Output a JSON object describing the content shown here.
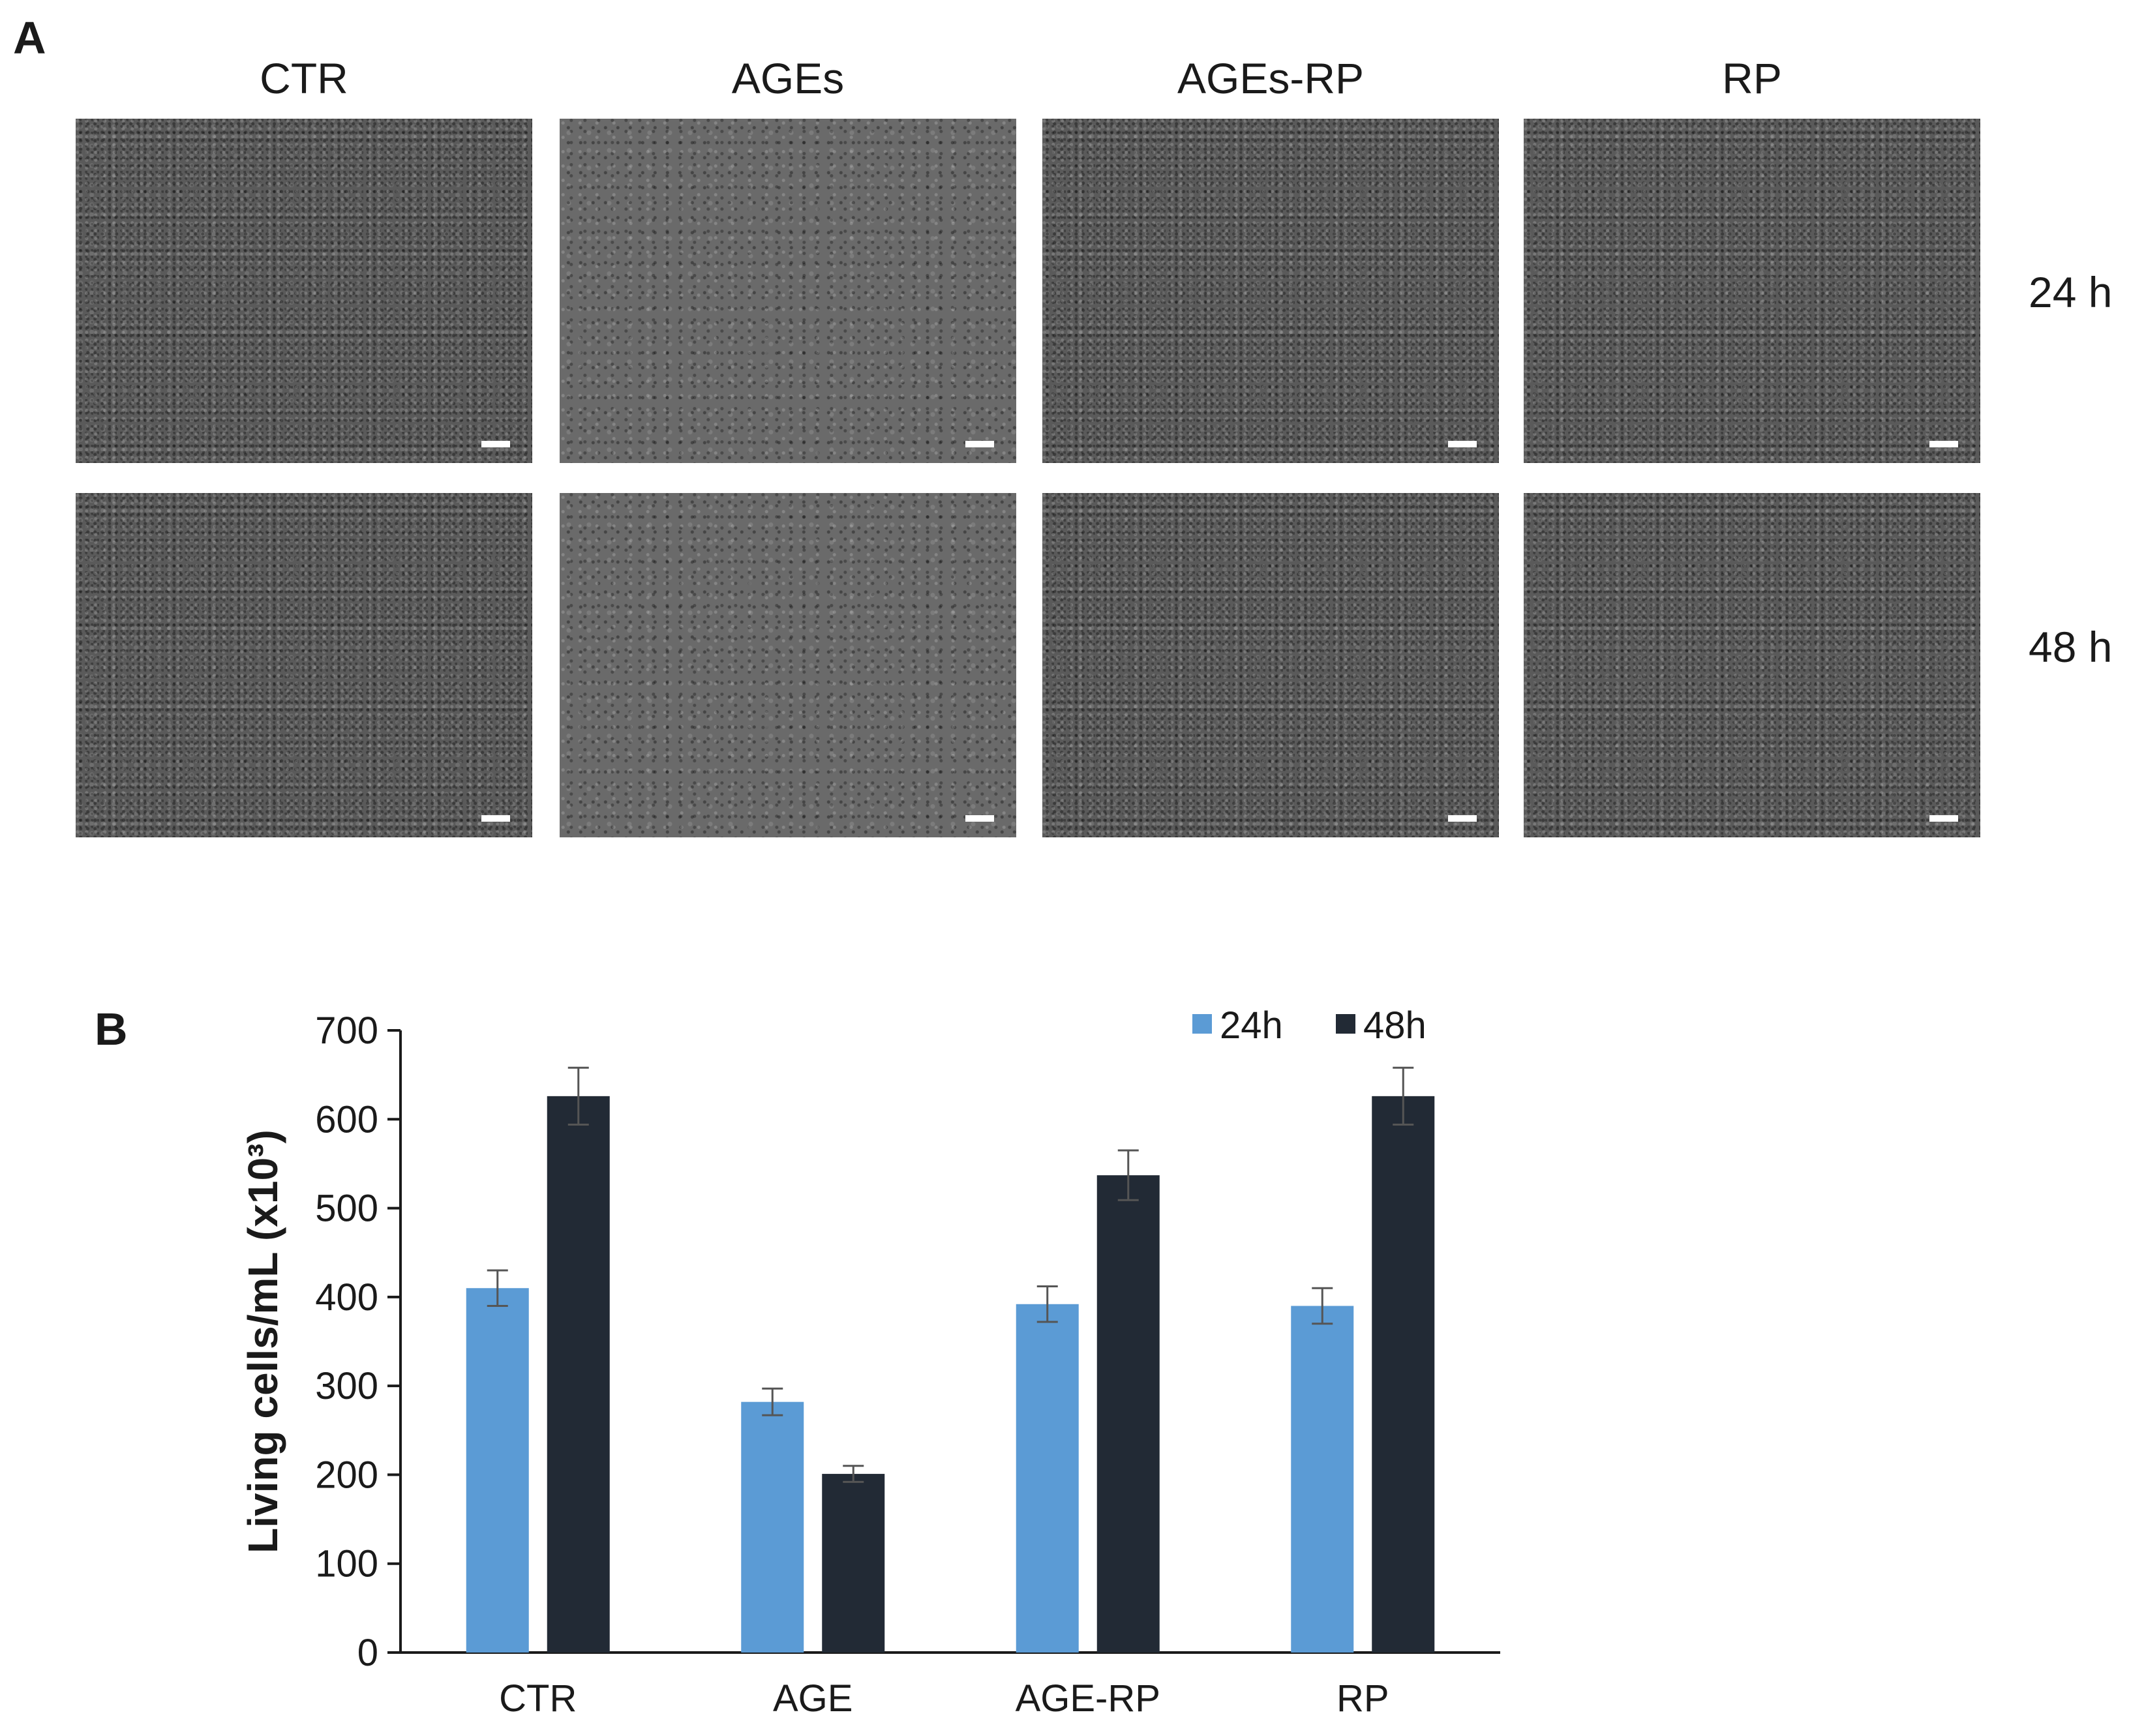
{
  "panel_a": {
    "label": "A",
    "columns": [
      "CTR",
      "AGEs",
      "AGEs-RP",
      "RP"
    ],
    "rows": [
      "24 h",
      "48 h"
    ]
  },
  "panel_b": {
    "label": "B"
  },
  "chart_data": {
    "type": "bar",
    "categories": [
      "CTR",
      "AGE",
      "AGE-RP",
      "RP"
    ],
    "series": [
      {
        "name": "24h",
        "values": [
          410,
          282,
          392,
          390
        ],
        "errors": [
          20,
          15,
          20,
          20
        ],
        "color": "#5b9bd5"
      },
      {
        "name": "48h",
        "values": [
          626,
          201,
          537,
          626
        ],
        "errors": [
          32,
          9,
          28,
          32
        ],
        "color": "#222a35"
      }
    ],
    "ylabel": "Living cells/mL (x10³)",
    "ylim": [
      0,
      700
    ],
    "yticks": [
      "0",
      "100",
      "200",
      "300",
      "400",
      "500",
      "600",
      "700"
    ],
    "grid": false,
    "legend": "top-right"
  }
}
